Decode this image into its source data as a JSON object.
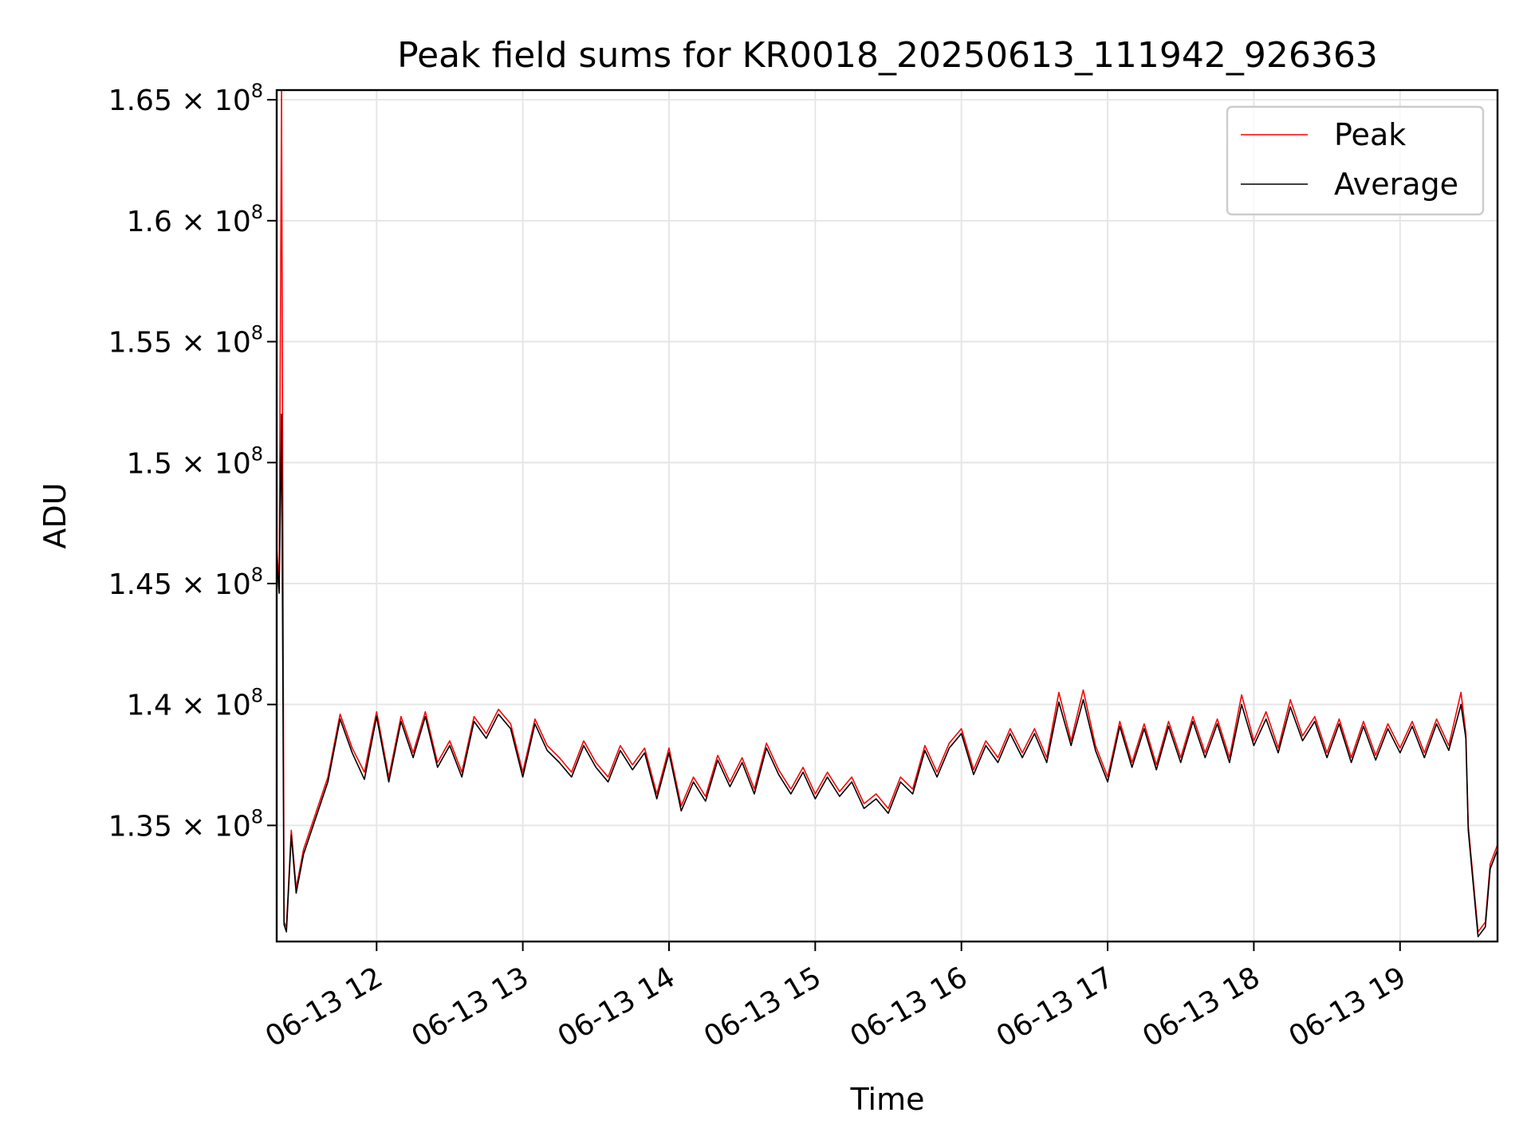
{
  "chart_data": {
    "type": "line",
    "title": "Peak field sums for KR0018_20250613_111942_926363",
    "xlabel": "Time",
    "ylabel": "ADU",
    "x_range": [
      "06-13 11:19",
      "06-13 19:40"
    ],
    "y_range": [
      130200000,
      165400000
    ],
    "grid": true,
    "legend_position": "top-right",
    "x_ticks": [
      {
        "time": "06-13 12:00",
        "label": "06-13 12"
      },
      {
        "time": "06-13 13:00",
        "label": "06-13 13"
      },
      {
        "time": "06-13 14:00",
        "label": "06-13 14"
      },
      {
        "time": "06-13 15:00",
        "label": "06-13 15"
      },
      {
        "time": "06-13 16:00",
        "label": "06-13 16"
      },
      {
        "time": "06-13 17:00",
        "label": "06-13 17"
      },
      {
        "time": "06-13 18:00",
        "label": "06-13 18"
      },
      {
        "time": "06-13 19:00",
        "label": "06-13 19"
      }
    ],
    "y_ticks": [
      {
        "value": 135000000,
        "mantissa": "1.35",
        "exp": "8"
      },
      {
        "value": 140000000,
        "mantissa": "1.4",
        "exp": "8"
      },
      {
        "value": 145000000,
        "mantissa": "1.45",
        "exp": "8"
      },
      {
        "value": 150000000,
        "mantissa": "1.5",
        "exp": "8"
      },
      {
        "value": 155000000,
        "mantissa": "1.55",
        "exp": "8"
      },
      {
        "value": 160000000,
        "mantissa": "1.6",
        "exp": "8"
      },
      {
        "value": 165000000,
        "mantissa": "1.65",
        "exp": "8"
      }
    ],
    "series": [
      {
        "name": "Peak",
        "color": "#ff0000",
        "points": [
          [
            "06-13 11:19",
            146500000
          ],
          [
            "06-13 11:20",
            145000000
          ],
          [
            "06-13 11:21",
            165400000
          ],
          [
            "06-13 11:22",
            131000000
          ],
          [
            "06-13 11:23",
            130800000
          ],
          [
            "06-13 11:25",
            134800000
          ],
          [
            "06-13 11:27",
            132400000
          ],
          [
            "06-13 11:30",
            134000000
          ],
          [
            "06-13 11:35",
            135500000
          ],
          [
            "06-13 11:40",
            137000000
          ],
          [
            "06-13 11:45",
            139600000
          ],
          [
            "06-13 11:50",
            138200000
          ],
          [
            "06-13 11:55",
            137200000
          ],
          [
            "06-13 12:00",
            139700000
          ],
          [
            "06-13 12:05",
            137000000
          ],
          [
            "06-13 12:10",
            139500000
          ],
          [
            "06-13 12:15",
            138000000
          ],
          [
            "06-13 12:20",
            139700000
          ],
          [
            "06-13 12:25",
            137600000
          ],
          [
            "06-13 12:30",
            138500000
          ],
          [
            "06-13 12:35",
            137200000
          ],
          [
            "06-13 12:40",
            139500000
          ],
          [
            "06-13 12:45",
            138800000
          ],
          [
            "06-13 12:50",
            139800000
          ],
          [
            "06-13 12:55",
            139200000
          ],
          [
            "06-13 13:00",
            137200000
          ],
          [
            "06-13 13:05",
            139400000
          ],
          [
            "06-13 13:10",
            138300000
          ],
          [
            "06-13 13:15",
            137800000
          ],
          [
            "06-13 13:20",
            137200000
          ],
          [
            "06-13 13:25",
            138500000
          ],
          [
            "06-13 13:30",
            137600000
          ],
          [
            "06-13 13:35",
            137000000
          ],
          [
            "06-13 13:40",
            138300000
          ],
          [
            "06-13 13:45",
            137500000
          ],
          [
            "06-13 13:50",
            138200000
          ],
          [
            "06-13 13:55",
            136300000
          ],
          [
            "06-13 14:00",
            138200000
          ],
          [
            "06-13 14:05",
            135800000
          ],
          [
            "06-13 14:10",
            137000000
          ],
          [
            "06-13 14:15",
            136200000
          ],
          [
            "06-13 14:20",
            137900000
          ],
          [
            "06-13 14:25",
            136800000
          ],
          [
            "06-13 14:30",
            137800000
          ],
          [
            "06-13 14:35",
            136500000
          ],
          [
            "06-13 14:40",
            138400000
          ],
          [
            "06-13 14:45",
            137300000
          ],
          [
            "06-13 14:50",
            136500000
          ],
          [
            "06-13 14:55",
            137400000
          ],
          [
            "06-13 15:00",
            136300000
          ],
          [
            "06-13 15:05",
            137200000
          ],
          [
            "06-13 15:10",
            136400000
          ],
          [
            "06-13 15:15",
            137000000
          ],
          [
            "06-13 15:20",
            135900000
          ],
          [
            "06-13 15:25",
            136300000
          ],
          [
            "06-13 15:30",
            135700000
          ],
          [
            "06-13 15:35",
            137000000
          ],
          [
            "06-13 15:40",
            136500000
          ],
          [
            "06-13 15:45",
            138300000
          ],
          [
            "06-13 15:50",
            137200000
          ],
          [
            "06-13 15:55",
            138400000
          ],
          [
            "06-13 16:00",
            139000000
          ],
          [
            "06-13 16:05",
            137300000
          ],
          [
            "06-13 16:10",
            138500000
          ],
          [
            "06-13 16:15",
            137800000
          ],
          [
            "06-13 16:20",
            139000000
          ],
          [
            "06-13 16:25",
            138000000
          ],
          [
            "06-13 16:30",
            139000000
          ],
          [
            "06-13 16:35",
            137800000
          ],
          [
            "06-13 16:40",
            140500000
          ],
          [
            "06-13 16:45",
            138500000
          ],
          [
            "06-13 16:50",
            140600000
          ],
          [
            "06-13 16:55",
            138300000
          ],
          [
            "06-13 17:00",
            137000000
          ],
          [
            "06-13 17:05",
            139300000
          ],
          [
            "06-13 17:10",
            137600000
          ],
          [
            "06-13 17:15",
            139200000
          ],
          [
            "06-13 17:20",
            137500000
          ],
          [
            "06-13 17:25",
            139300000
          ],
          [
            "06-13 17:30",
            137800000
          ],
          [
            "06-13 17:35",
            139500000
          ],
          [
            "06-13 17:40",
            138000000
          ],
          [
            "06-13 17:45",
            139400000
          ],
          [
            "06-13 17:50",
            137800000
          ],
          [
            "06-13 17:55",
            140400000
          ],
          [
            "06-13 18:00",
            138500000
          ],
          [
            "06-13 18:05",
            139700000
          ],
          [
            "06-13 18:10",
            138200000
          ],
          [
            "06-13 18:15",
            140200000
          ],
          [
            "06-13 18:20",
            138700000
          ],
          [
            "06-13 18:25",
            139500000
          ],
          [
            "06-13 18:30",
            138000000
          ],
          [
            "06-13 18:35",
            139400000
          ],
          [
            "06-13 18:40",
            137800000
          ],
          [
            "06-13 18:45",
            139300000
          ],
          [
            "06-13 18:50",
            137900000
          ],
          [
            "06-13 18:55",
            139200000
          ],
          [
            "06-13 19:00",
            138200000
          ],
          [
            "06-13 19:05",
            139300000
          ],
          [
            "06-13 19:10",
            138000000
          ],
          [
            "06-13 19:15",
            139400000
          ],
          [
            "06-13 19:20",
            138300000
          ],
          [
            "06-13 19:25",
            140500000
          ],
          [
            "06-13 19:27",
            138800000
          ],
          [
            "06-13 19:28",
            135000000
          ],
          [
            "06-13 19:32",
            130600000
          ],
          [
            "06-13 19:35",
            131000000
          ],
          [
            "06-13 19:37",
            133400000
          ],
          [
            "06-13 19:40",
            134200000
          ]
        ]
      },
      {
        "name": "Average",
        "color": "#000000",
        "points": [
          [
            "06-13 11:19",
            146100000
          ],
          [
            "06-13 11:20",
            144600000
          ],
          [
            "06-13 11:21",
            152000000
          ],
          [
            "06-13 11:22",
            130900000
          ],
          [
            "06-13 11:23",
            130600000
          ],
          [
            "06-13 11:25",
            134600000
          ],
          [
            "06-13 11:27",
            132200000
          ],
          [
            "06-13 11:30",
            133800000
          ],
          [
            "06-13 11:35",
            135300000
          ],
          [
            "06-13 11:40",
            136800000
          ],
          [
            "06-13 11:45",
            139400000
          ],
          [
            "06-13 11:50",
            138000000
          ],
          [
            "06-13 11:55",
            136900000
          ],
          [
            "06-13 12:00",
            139500000
          ],
          [
            "06-13 12:05",
            136800000
          ],
          [
            "06-13 12:10",
            139300000
          ],
          [
            "06-13 12:15",
            137800000
          ],
          [
            "06-13 12:20",
            139500000
          ],
          [
            "06-13 12:25",
            137400000
          ],
          [
            "06-13 12:30",
            138300000
          ],
          [
            "06-13 12:35",
            137000000
          ],
          [
            "06-13 12:40",
            139300000
          ],
          [
            "06-13 12:45",
            138600000
          ],
          [
            "06-13 12:50",
            139600000
          ],
          [
            "06-13 12:55",
            139000000
          ],
          [
            "06-13 13:00",
            137000000
          ],
          [
            "06-13 13:05",
            139200000
          ],
          [
            "06-13 13:10",
            138100000
          ],
          [
            "06-13 13:15",
            137600000
          ],
          [
            "06-13 13:20",
            137000000
          ],
          [
            "06-13 13:25",
            138300000
          ],
          [
            "06-13 13:30",
            137400000
          ],
          [
            "06-13 13:35",
            136800000
          ],
          [
            "06-13 13:40",
            138100000
          ],
          [
            "06-13 13:45",
            137300000
          ],
          [
            "06-13 13:50",
            138000000
          ],
          [
            "06-13 13:55",
            136100000
          ],
          [
            "06-13 14:00",
            138000000
          ],
          [
            "06-13 14:05",
            135600000
          ],
          [
            "06-13 14:10",
            136800000
          ],
          [
            "06-13 14:15",
            136000000
          ],
          [
            "06-13 14:20",
            137700000
          ],
          [
            "06-13 14:25",
            136600000
          ],
          [
            "06-13 14:30",
            137600000
          ],
          [
            "06-13 14:35",
            136300000
          ],
          [
            "06-13 14:40",
            138200000
          ],
          [
            "06-13 14:45",
            137100000
          ],
          [
            "06-13 14:50",
            136300000
          ],
          [
            "06-13 14:55",
            137200000
          ],
          [
            "06-13 15:00",
            136100000
          ],
          [
            "06-13 15:05",
            137000000
          ],
          [
            "06-13 15:10",
            136200000
          ],
          [
            "06-13 15:15",
            136800000
          ],
          [
            "06-13 15:20",
            135700000
          ],
          [
            "06-13 15:25",
            136100000
          ],
          [
            "06-13 15:30",
            135500000
          ],
          [
            "06-13 15:35",
            136800000
          ],
          [
            "06-13 15:40",
            136300000
          ],
          [
            "06-13 15:45",
            138100000
          ],
          [
            "06-13 15:50",
            137000000
          ],
          [
            "06-13 15:55",
            138200000
          ],
          [
            "06-13 16:00",
            138800000
          ],
          [
            "06-13 16:05",
            137100000
          ],
          [
            "06-13 16:10",
            138300000
          ],
          [
            "06-13 16:15",
            137600000
          ],
          [
            "06-13 16:20",
            138800000
          ],
          [
            "06-13 16:25",
            137800000
          ],
          [
            "06-13 16:30",
            138800000
          ],
          [
            "06-13 16:35",
            137600000
          ],
          [
            "06-13 16:40",
            140100000
          ],
          [
            "06-13 16:45",
            138300000
          ],
          [
            "06-13 16:50",
            140200000
          ],
          [
            "06-13 16:55",
            138100000
          ],
          [
            "06-13 17:00",
            136800000
          ],
          [
            "06-13 17:05",
            139100000
          ],
          [
            "06-13 17:10",
            137400000
          ],
          [
            "06-13 17:15",
            139000000
          ],
          [
            "06-13 17:20",
            137300000
          ],
          [
            "06-13 17:25",
            139100000
          ],
          [
            "06-13 17:30",
            137600000
          ],
          [
            "06-13 17:35",
            139300000
          ],
          [
            "06-13 17:40",
            137800000
          ],
          [
            "06-13 17:45",
            139200000
          ],
          [
            "06-13 17:50",
            137600000
          ],
          [
            "06-13 17:55",
            140000000
          ],
          [
            "06-13 18:00",
            138300000
          ],
          [
            "06-13 18:05",
            139400000
          ],
          [
            "06-13 18:10",
            138000000
          ],
          [
            "06-13 18:15",
            139900000
          ],
          [
            "06-13 18:20",
            138500000
          ],
          [
            "06-13 18:25",
            139300000
          ],
          [
            "06-13 18:30",
            137800000
          ],
          [
            "06-13 18:35",
            139200000
          ],
          [
            "06-13 18:40",
            137600000
          ],
          [
            "06-13 18:45",
            139100000
          ],
          [
            "06-13 18:50",
            137700000
          ],
          [
            "06-13 18:55",
            139000000
          ],
          [
            "06-13 19:00",
            138000000
          ],
          [
            "06-13 19:05",
            139100000
          ],
          [
            "06-13 19:10",
            137800000
          ],
          [
            "06-13 19:15",
            139200000
          ],
          [
            "06-13 19:20",
            138100000
          ],
          [
            "06-13 19:25",
            140000000
          ],
          [
            "06-13 19:27",
            138600000
          ],
          [
            "06-13 19:28",
            134800000
          ],
          [
            "06-13 19:32",
            130400000
          ],
          [
            "06-13 19:35",
            130800000
          ],
          [
            "06-13 19:37",
            133200000
          ],
          [
            "06-13 19:40",
            134000000
          ]
        ]
      }
    ]
  }
}
